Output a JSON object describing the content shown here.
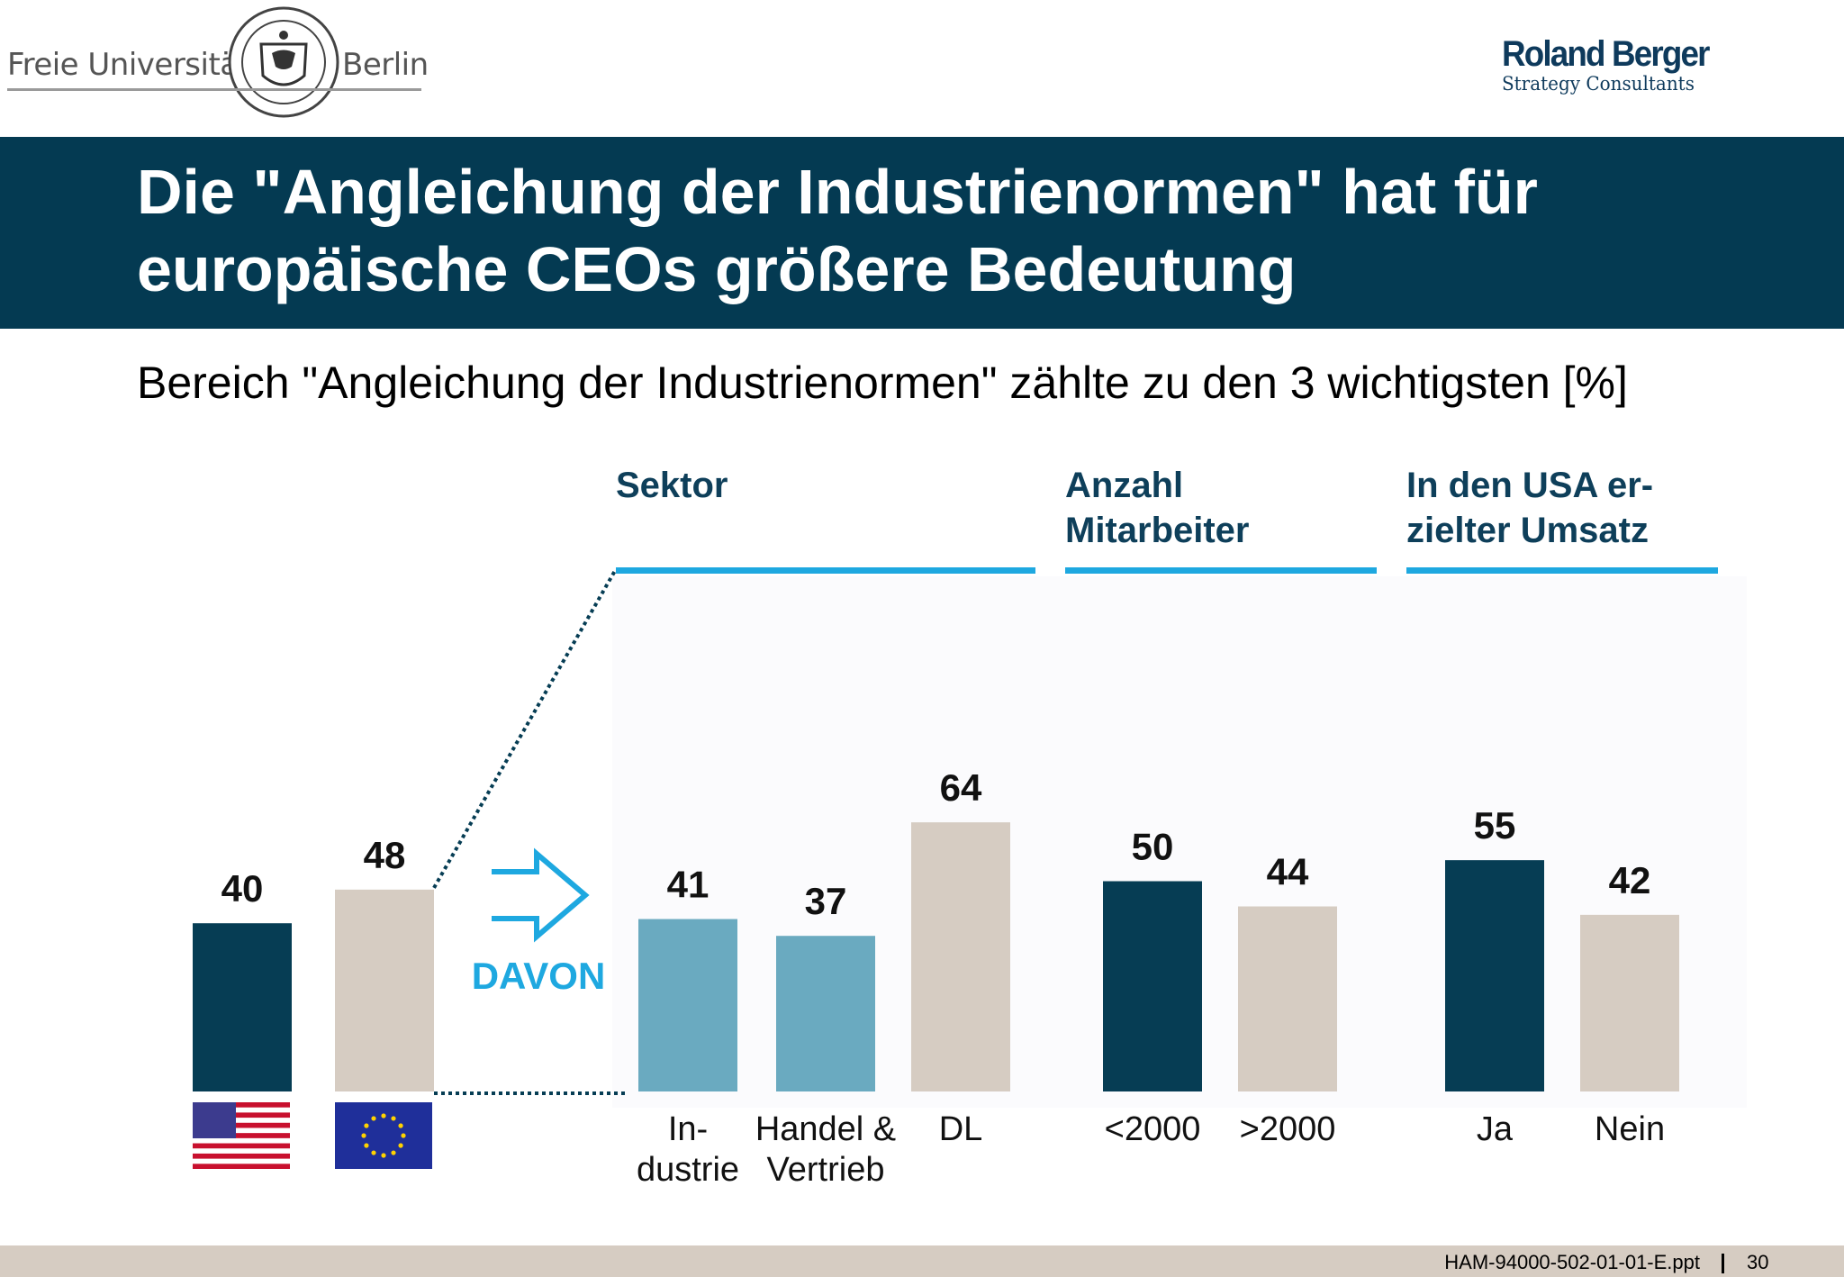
{
  "header": {
    "university_left": "Freie Universität",
    "university_right": "Berlin",
    "consultant_name": "Roland Berger",
    "consultant_sub": "Strategy Consultants"
  },
  "title": "Die \"Angleichung der Industrienormen\" hat für europäische CEOs größere Bedeutung",
  "subtitle": "Bereich \"Angleichung der Industrienormen\" zählte zu den 3 wichtigsten [%]",
  "davon_label": "DAVON",
  "groups": {
    "sektor": "Sektor",
    "mitarbeiter": [
      "Anzahl",
      "Mitarbeiter"
    ],
    "usa": [
      "In den USA er-",
      "zielter Umsatz"
    ]
  },
  "colors": {
    "dark_teal": "#063d54",
    "beige": "#d6ccc2",
    "light_teal": "#6aaac0",
    "cyan": "#1ea8e0",
    "group_header": "#0e3f5a"
  },
  "chart_data": {
    "type": "bar",
    "ylabel": "%",
    "bars": [
      {
        "category": "USA",
        "value": 40,
        "color": "dark_teal",
        "label_lines": [],
        "flag": "us-flag"
      },
      {
        "category": "EU",
        "value": 48,
        "color": "beige",
        "label_lines": [],
        "flag": "eu-flag"
      },
      {
        "category": "Industrie",
        "group": "Sektor",
        "value": 41,
        "color": "light_teal",
        "label_lines": [
          "In-",
          "dustrie"
        ]
      },
      {
        "category": "Handel & Vertrieb",
        "group": "Sektor",
        "value": 37,
        "color": "light_teal",
        "label_lines": [
          "Handel &",
          "Vertrieb"
        ]
      },
      {
        "category": "DL",
        "group": "Sektor",
        "value": 64,
        "color": "beige",
        "label_lines": [
          "DL"
        ]
      },
      {
        "category": "<2000",
        "group": "Anzahl Mitarbeiter",
        "value": 50,
        "color": "dark_teal",
        "label_lines": [
          "<2000"
        ]
      },
      {
        "category": ">2000",
        "group": "Anzahl Mitarbeiter",
        "value": 44,
        "color": "beige",
        "label_lines": [
          ">2000"
        ]
      },
      {
        "category": "Ja",
        "group": "In den USA erzielter Umsatz",
        "value": 55,
        "color": "dark_teal",
        "label_lines": [
          "Ja"
        ]
      },
      {
        "category": "Nein",
        "group": "In den USA erzielter Umsatz",
        "value": 42,
        "color": "beige",
        "label_lines": [
          "Nein"
        ]
      }
    ]
  },
  "footer": {
    "file": "HAM-94000-502-01-01-E.ppt",
    "page": "30"
  }
}
